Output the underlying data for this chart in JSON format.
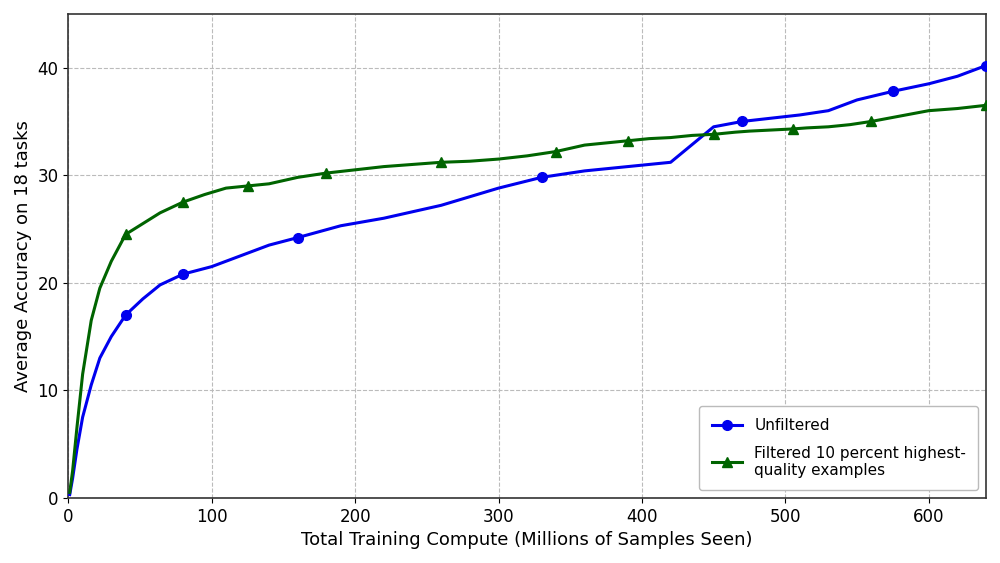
{
  "title": "",
  "xlabel": "Total Training Compute (Millions of Samples Seen)",
  "ylabel": "Average Accuracy on 18 tasks",
  "xlim": [
    0,
    640
  ],
  "ylim": [
    0,
    45
  ],
  "yticks": [
    0,
    10,
    20,
    30,
    40
  ],
  "xticks": [
    0,
    100,
    200,
    300,
    400,
    500,
    600
  ],
  "unfiltered_x": [
    1,
    3,
    6,
    10,
    16,
    22,
    30,
    40,
    52,
    64,
    80,
    100,
    120,
    140,
    160,
    190,
    220,
    260,
    300,
    330,
    360,
    390,
    420,
    450,
    470,
    490,
    510,
    530,
    550,
    575,
    600,
    620,
    640
  ],
  "unfiltered_y": [
    0.3,
    1.8,
    4.5,
    7.5,
    10.5,
    13.0,
    15.0,
    17.0,
    18.5,
    19.8,
    20.8,
    21.5,
    22.5,
    23.5,
    24.2,
    25.3,
    26.0,
    27.2,
    28.8,
    29.8,
    30.4,
    30.8,
    31.2,
    34.5,
    35.0,
    35.3,
    35.6,
    36.0,
    37.0,
    37.8,
    38.5,
    39.2,
    40.2
  ],
  "filtered_x": [
    1,
    3,
    6,
    10,
    16,
    22,
    30,
    40,
    52,
    64,
    80,
    95,
    110,
    125,
    140,
    160,
    180,
    200,
    220,
    240,
    260,
    280,
    300,
    320,
    340,
    360,
    375,
    390,
    405,
    420,
    435,
    450,
    465,
    475,
    490,
    505,
    515,
    530,
    545,
    560,
    580,
    600,
    620,
    640
  ],
  "filtered_y": [
    0.5,
    2.5,
    6.5,
    11.5,
    16.5,
    19.5,
    22.0,
    24.5,
    25.5,
    26.5,
    27.5,
    28.2,
    28.8,
    29.0,
    29.2,
    29.8,
    30.2,
    30.5,
    30.8,
    31.0,
    31.2,
    31.3,
    31.5,
    31.8,
    32.2,
    32.8,
    33.0,
    33.2,
    33.4,
    33.5,
    33.7,
    33.8,
    34.0,
    34.1,
    34.2,
    34.3,
    34.4,
    34.5,
    34.7,
    35.0,
    35.5,
    36.0,
    36.2,
    36.5
  ],
  "unfiltered_color": "#0000ee",
  "filtered_color": "#006400",
  "unfiltered_marker": "o",
  "filtered_marker": "^",
  "unfiltered_markevery": [
    7,
    10,
    14,
    19,
    24,
    29,
    32
  ],
  "filtered_markevery": [
    7,
    10,
    13,
    16,
    20,
    24,
    27,
    31,
    35,
    39,
    43
  ],
  "legend_labels": [
    "Unfiltered",
    "Filtered 10 percent highest-\nquality examples"
  ],
  "background_color": "#ffffff",
  "plot_bg_color": "#f8f8f8",
  "grid_color": "#bbbbbb",
  "linewidth": 2.2,
  "markersize": 7
}
